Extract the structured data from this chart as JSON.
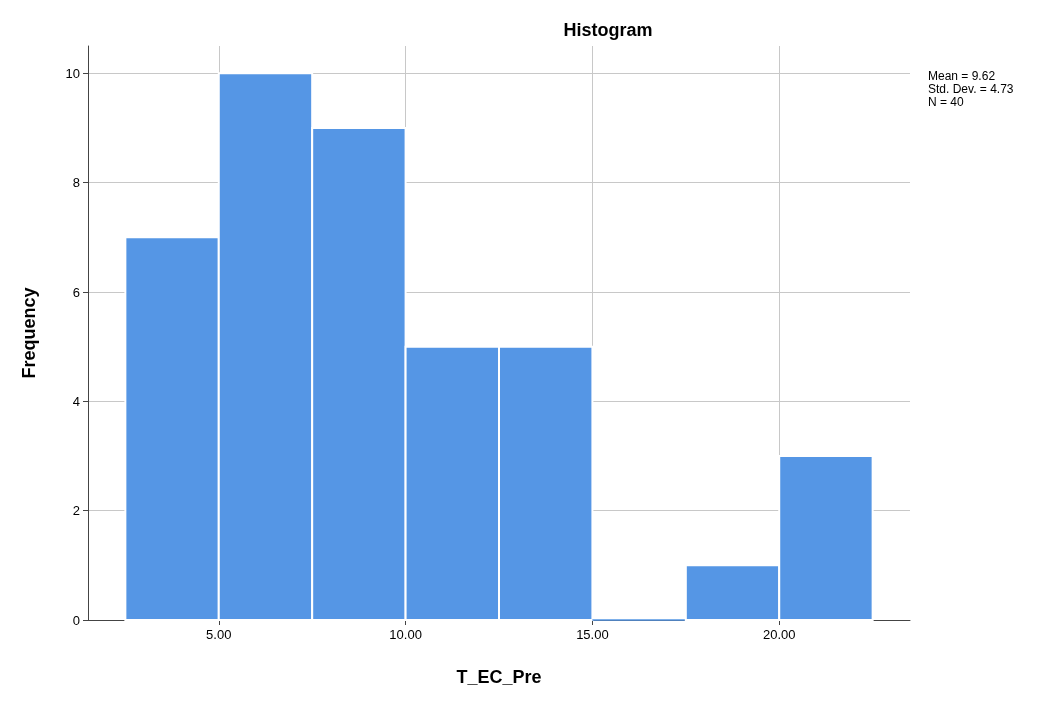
{
  "chart_data": {
    "type": "histogram",
    "title": "Histogram",
    "xlabel": "T_EC_Pre",
    "ylabel": "Frequency",
    "bins": [
      2.5,
      5,
      7.5,
      10,
      12.5,
      15,
      17.5,
      20,
      22.5
    ],
    "values": [
      7,
      10,
      9,
      5,
      5,
      0,
      1,
      3
    ],
    "color": "#5596e5",
    "xlim": [
      1.5,
      23.5
    ],
    "xticks": [
      {
        "value": 5,
        "label": "5.00"
      },
      {
        "value": 10,
        "label": "10.00"
      },
      {
        "value": 15,
        "label": "15.00"
      },
      {
        "value": 20,
        "label": "20.00"
      }
    ],
    "ylim": [
      0,
      10.5
    ],
    "yticks": [
      0,
      2,
      4,
      6,
      8,
      10
    ],
    "grid": true,
    "annotations": [
      "Mean = 9.62",
      "Std. Dev. = 4.73",
      "N = 40"
    ]
  }
}
